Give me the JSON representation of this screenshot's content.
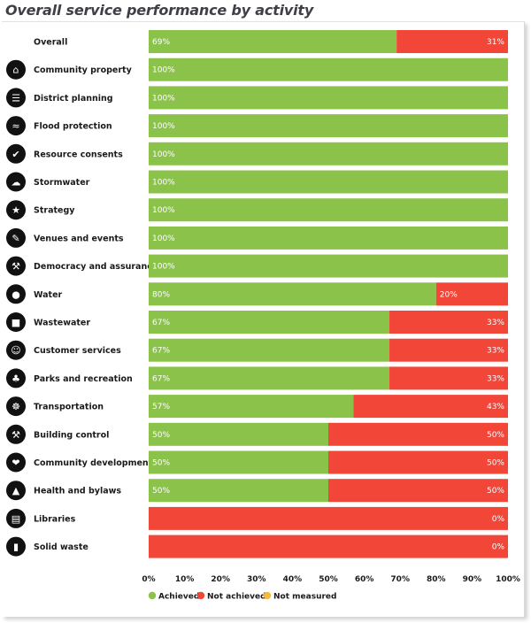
{
  "chart_data": {
    "type": "bar",
    "orientation": "horizontal",
    "stacked": true,
    "title": "Overall service performance by activity",
    "categories": [
      "Overall",
      "Community property",
      "District planning",
      "Flood protection",
      "Resource consents",
      "Stormwater",
      "Strategy",
      "Venues and events",
      "Democracy and assurance",
      "Water",
      "Wastewater",
      "Customer services",
      "Parks and recreation",
      "Transportation",
      "Building control",
      "Community development",
      "Health and bylaws",
      "Libraries",
      "Solid waste"
    ],
    "icons": [
      "",
      "house-icon",
      "planning-icon",
      "flood-icon",
      "consent-icon",
      "cloud-icon",
      "lightbulb-icon",
      "pen-icon",
      "gavel-icon",
      "water-drop-icon",
      "toilet-icon",
      "person-icon",
      "tree-icon",
      "wheel-icon",
      "hammer-icon",
      "handshake-icon",
      "dog-icon",
      "book-icon",
      "bin-icon"
    ],
    "series": [
      {
        "name": "Achieved",
        "color": "#8bc34a",
        "values": [
          69,
          100,
          100,
          100,
          100,
          100,
          100,
          100,
          100,
          80,
          67,
          67,
          67,
          57,
          50,
          50,
          50,
          0,
          0
        ]
      },
      {
        "name": "Not achieved",
        "color": "#f24638",
        "values": [
          31,
          0,
          0,
          0,
          0,
          0,
          0,
          0,
          0,
          20,
          33,
          33,
          33,
          43,
          50,
          50,
          50,
          0,
          0
        ]
      },
      {
        "name": "Not measured",
        "color": "#f6b93b",
        "values": [
          0,
          0,
          0,
          0,
          0,
          0,
          0,
          0,
          0,
          0,
          0,
          0,
          0,
          0,
          0,
          0,
          0,
          0,
          0
        ]
      }
    ],
    "special_fill": [
      null,
      null,
      null,
      null,
      null,
      null,
      null,
      null,
      null,
      null,
      null,
      null,
      null,
      null,
      null,
      null,
      null,
      "Not achieved",
      "Not achieved"
    ],
    "value_labels": [
      [
        "69%",
        "31%"
      ],
      [
        "100%",
        ""
      ],
      [
        "100%",
        ""
      ],
      [
        "100%",
        ""
      ],
      [
        "100%",
        ""
      ],
      [
        "100%",
        ""
      ],
      [
        "100%",
        ""
      ],
      [
        "100%",
        ""
      ],
      [
        "100%",
        ""
      ],
      [
        "80%",
        "20%"
      ],
      [
        "67%",
        "33%"
      ],
      [
        "67%",
        "33%"
      ],
      [
        "67%",
        "33%"
      ],
      [
        "57%",
        "43%"
      ],
      [
        "50%",
        "50%"
      ],
      [
        "50%",
        "50%"
      ],
      [
        "50%",
        "50%"
      ],
      [
        "",
        "0%"
      ],
      [
        "",
        "0%"
      ]
    ],
    "xlim": [
      0,
      100
    ],
    "xticks": [
      "0%",
      "10%",
      "20%",
      "30%",
      "40%",
      "50%",
      "60%",
      "70%",
      "80%",
      "90%",
      "100%"
    ],
    "legend": {
      "position": "bottom",
      "entries": [
        "Achieved",
        "Not achieved",
        "Not measured"
      ]
    },
    "grid": false
  }
}
